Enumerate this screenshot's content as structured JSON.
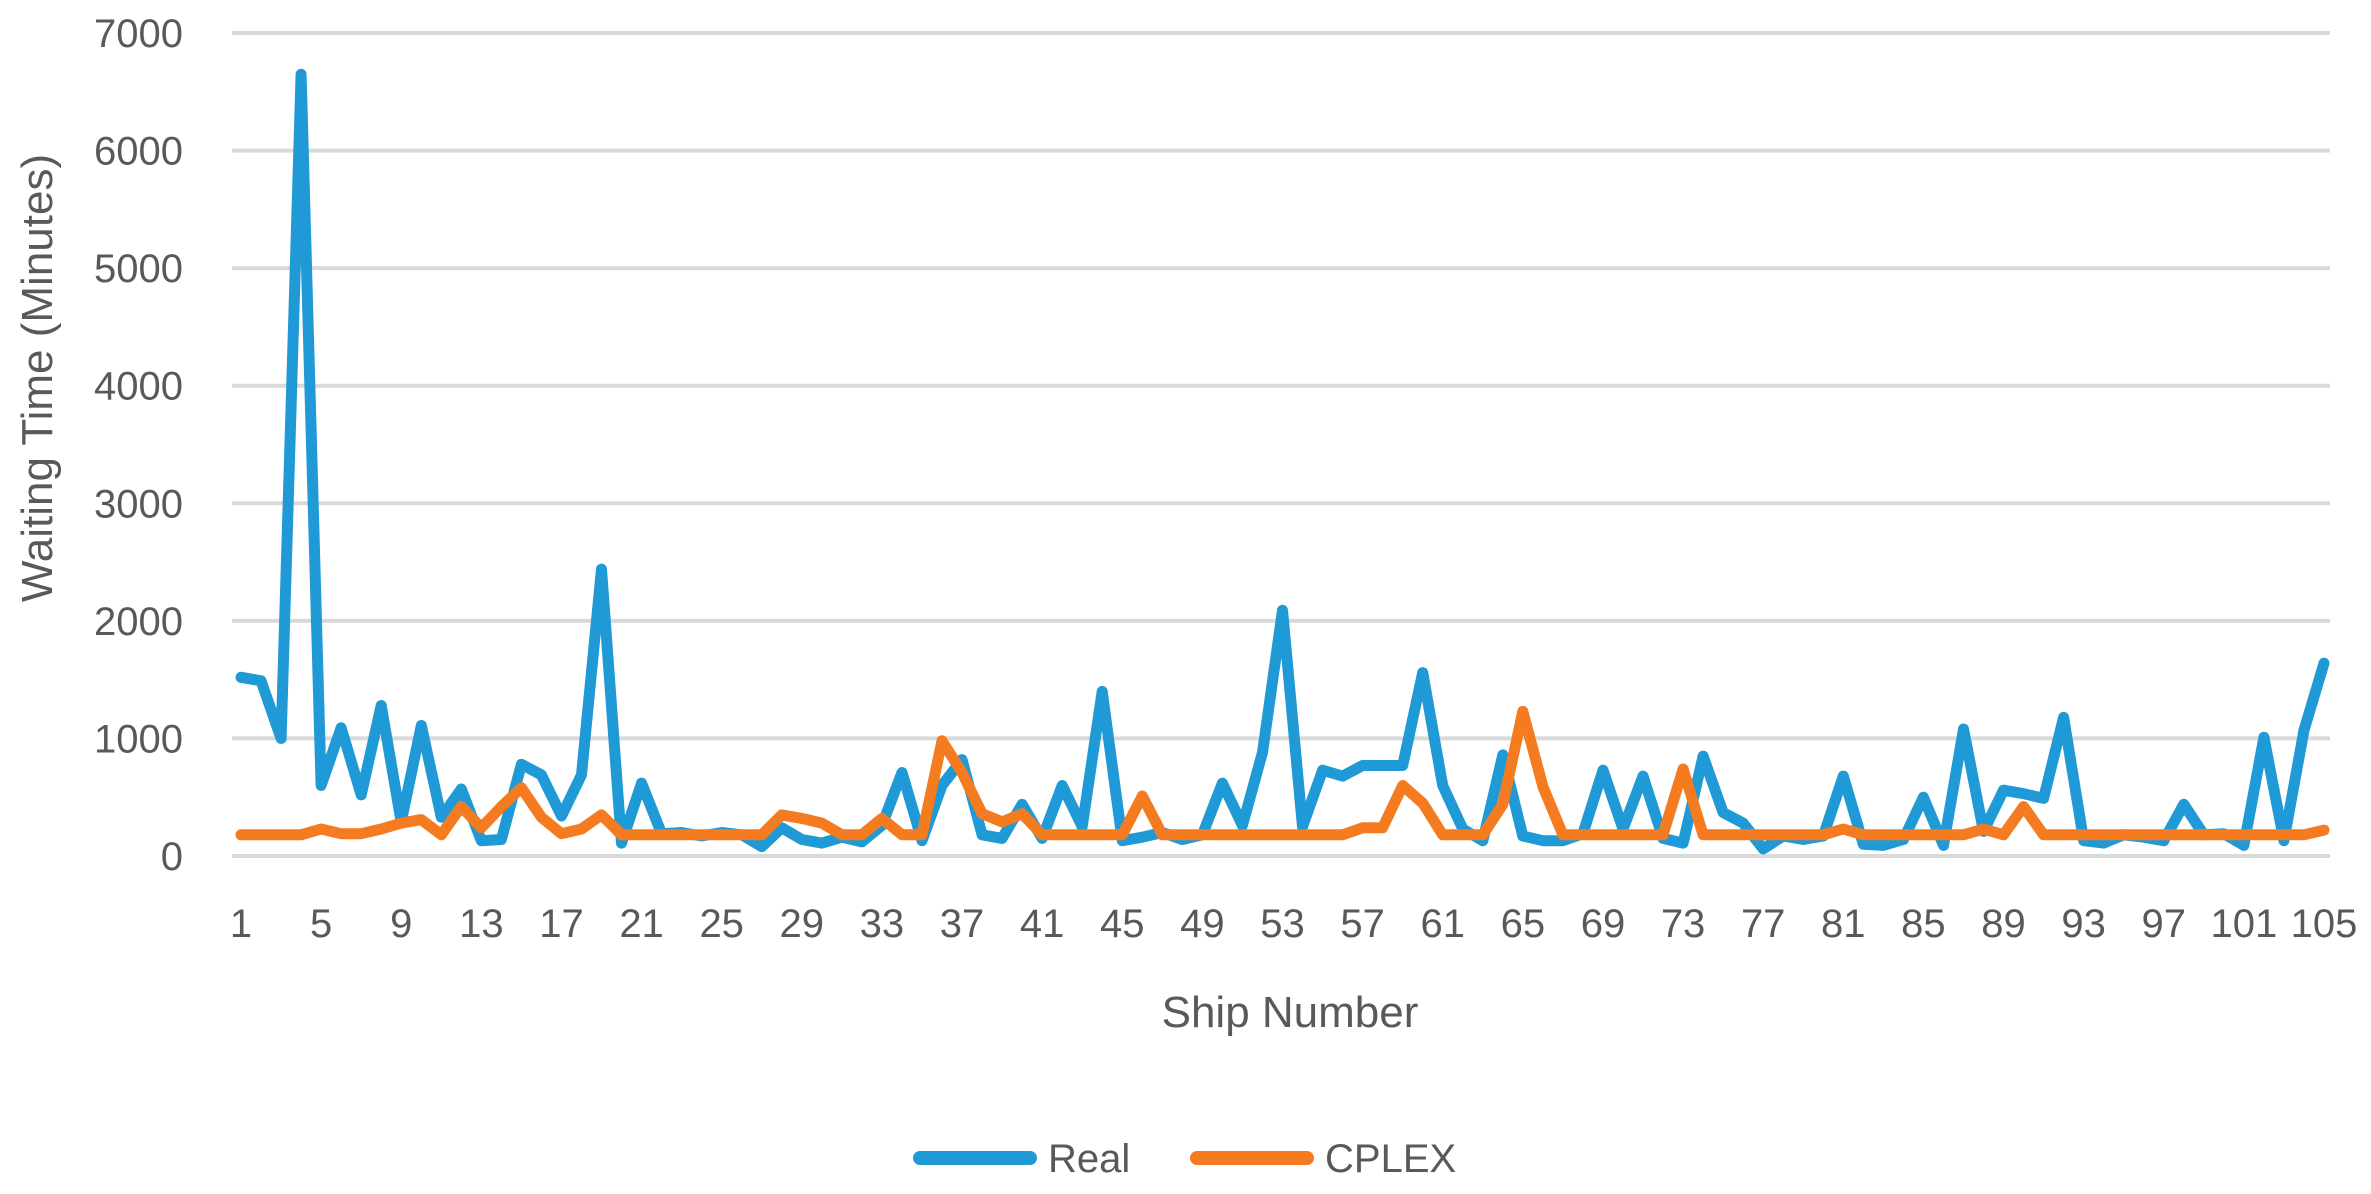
{
  "chart_data": {
    "type": "line",
    "title": "",
    "xlabel": "Ship Number",
    "ylabel": "Waiting Time (Minutes)",
    "ylim": [
      0,
      7000
    ],
    "yticks": [
      "0",
      "1000",
      "2000",
      "3000",
      "4000",
      "5000",
      "6000",
      "7000"
    ],
    "grid": true,
    "legend_position": "bottom",
    "x_tick_labels": [
      "1",
      "5",
      "9",
      "13",
      "17",
      "21",
      "25",
      "29",
      "33",
      "37",
      "41",
      "45",
      "49",
      "53",
      "57",
      "61",
      "65",
      "69",
      "73",
      "77",
      "81",
      "85",
      "89",
      "93",
      "97",
      "101",
      "105"
    ],
    "x_tick_positions": [
      1,
      5,
      9,
      13,
      17,
      21,
      25,
      29,
      33,
      37,
      41,
      45,
      49,
      53,
      57,
      61,
      65,
      69,
      73,
      77,
      81,
      85,
      89,
      93,
      97,
      101,
      105
    ],
    "x": [
      1,
      2,
      3,
      4,
      5,
      6,
      7,
      8,
      9,
      10,
      11,
      12,
      13,
      14,
      15,
      16,
      17,
      18,
      19,
      20,
      21,
      22,
      23,
      24,
      25,
      26,
      27,
      28,
      29,
      30,
      31,
      32,
      33,
      34,
      35,
      36,
      37,
      38,
      39,
      40,
      41,
      42,
      43,
      44,
      45,
      46,
      47,
      48,
      49,
      50,
      51,
      52,
      53,
      54,
      55,
      56,
      57,
      58,
      59,
      60,
      61,
      62,
      63,
      64,
      65,
      66,
      67,
      68,
      69,
      70,
      71,
      72,
      73,
      74,
      75,
      76,
      77,
      78,
      79,
      80,
      81,
      82,
      83,
      84,
      85,
      86,
      87,
      88,
      89,
      90,
      91,
      92,
      93,
      94,
      95,
      96,
      97,
      98,
      99,
      100,
      101,
      102,
      103,
      104,
      105
    ],
    "series": [
      {
        "name": "Real",
        "color": "#1f9ad6",
        "values": [
          1520,
          1490,
          1000,
          6650,
          600,
          1090,
          520,
          1280,
          290,
          1110,
          330,
          570,
          130,
          140,
          780,
          690,
          340,
          690,
          2440,
          110,
          620,
          190,
          200,
          170,
          200,
          180,
          80,
          240,
          140,
          110,
          160,
          120,
          260,
          710,
          130,
          600,
          820,
          180,
          150,
          440,
          150,
          600,
          250,
          1400,
          130,
          160,
          200,
          140,
          180,
          620,
          260,
          880,
          2090,
          250,
          730,
          680,
          770,
          770,
          770,
          1560,
          600,
          230,
          130,
          860,
          170,
          130,
          130,
          190,
          730,
          230,
          680,
          150,
          110,
          850,
          370,
          280,
          60,
          170,
          140,
          170,
          680,
          100,
          90,
          140,
          500,
          90,
          1080,
          210,
          560,
          530,
          490,
          1180,
          130,
          110,
          180,
          160,
          130,
          440,
          180,
          190,
          90,
          1010,
          130,
          1070,
          1640
        ]
      },
      {
        "name": "CPLEX",
        "color": "#f47b20",
        "values": [
          180,
          180,
          180,
          180,
          230,
          190,
          190,
          230,
          280,
          310,
          180,
          420,
          240,
          420,
          580,
          330,
          190,
          230,
          350,
          180,
          180,
          180,
          180,
          180,
          180,
          180,
          180,
          350,
          320,
          280,
          180,
          180,
          320,
          180,
          180,
          980,
          710,
          360,
          290,
          360,
          180,
          180,
          180,
          180,
          180,
          510,
          180,
          180,
          180,
          180,
          180,
          180,
          180,
          180,
          180,
          180,
          240,
          240,
          600,
          450,
          180,
          180,
          180,
          440,
          1230,
          590,
          180,
          180,
          180,
          180,
          180,
          180,
          740,
          180,
          180,
          180,
          180,
          180,
          180,
          180,
          230,
          180,
          180,
          180,
          180,
          180,
          180,
          230,
          180,
          420,
          180,
          180,
          180,
          180,
          180,
          180,
          180,
          180,
          180,
          180,
          180,
          180,
          180,
          180,
          220
        ]
      }
    ]
  }
}
